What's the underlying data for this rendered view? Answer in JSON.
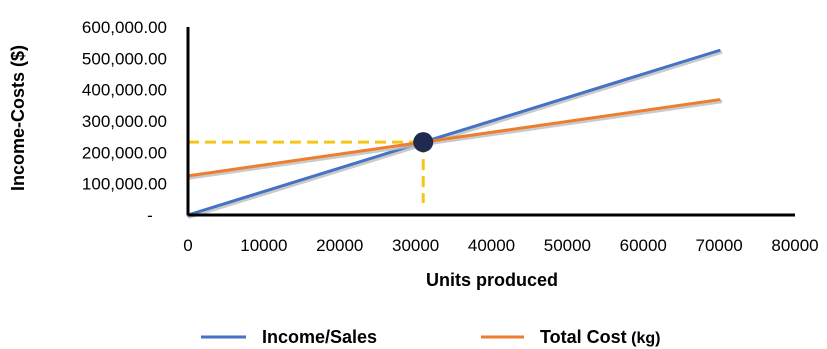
{
  "chart_data": {
    "type": "line",
    "xlabel": "Units produced",
    "ylabel": "Income-Costs ($)",
    "xlim": [
      0,
      80000
    ],
    "ylim": [
      0,
      600000
    ],
    "x_ticks": [
      "0",
      "10000",
      "20000",
      "30000",
      "40000",
      "50000",
      "60000",
      "70000",
      "80000"
    ],
    "y_ticks": [
      "-",
      "100,000.00",
      "200,000.00",
      "300,000.00",
      "400,000.00",
      "500,000.00",
      "600,000.00"
    ],
    "grid": false,
    "legend_position": "bottom",
    "series": [
      {
        "name": "Income/Sales",
        "color": "#4472C4",
        "x": [
          0,
          70000
        ],
        "y": [
          0,
          525000
        ]
      },
      {
        "name": "Total Cost",
        "unit": "(kg)",
        "color": "#ED7D31",
        "x": [
          0,
          70000
        ],
        "y": [
          125000,
          368000
        ]
      }
    ],
    "break_even_point": {
      "x": 31000,
      "y": 232500,
      "marker_color": "#1F2A4F",
      "guide_color": "#F5C518"
    }
  }
}
